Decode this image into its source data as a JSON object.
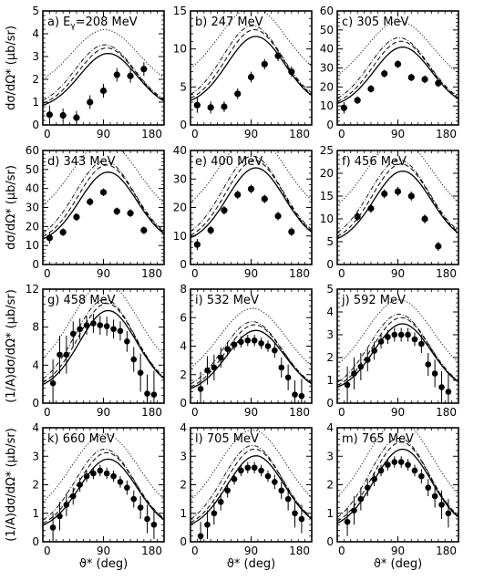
{
  "chart_data": [
    {
      "type": "scatter",
      "label": "a) E",
      "label_sub": "γ",
      "label_rest": "=208 MeV",
      "ylim": [
        0,
        5
      ],
      "yticks": [
        "0",
        "1",
        "2",
        "3",
        "4",
        "5"
      ],
      "xlim": [
        0,
        180
      ],
      "xticks": [
        "0",
        "90",
        "180"
      ],
      "series": [
        {
          "x": [
            10,
            30,
            50,
            70,
            90,
            110,
            130,
            150
          ],
          "y": [
            0.45,
            0.42,
            0.32,
            1.0,
            1.5,
            2.2,
            2.15,
            2.45
          ],
          "err": [
            0.4,
            0.3,
            0.3,
            0.3,
            0.3,
            0.3,
            0.3,
            0.3
          ]
        }
      ]
    },
    {
      "type": "scatter",
      "label": "b) 247 MeV",
      "ylim": [
        0,
        15
      ],
      "yticks": [
        "0",
        "5",
        "10",
        "15"
      ],
      "xlim": [
        0,
        180
      ],
      "xticks": [
        "0",
        "90",
        "180"
      ],
      "series": [
        {
          "x": [
            10,
            30,
            50,
            70,
            90,
            110,
            130,
            150
          ],
          "y": [
            2.6,
            2.3,
            2.4,
            4.1,
            6.3,
            8.0,
            9.1,
            7.0
          ],
          "err": [
            1.0,
            0.8,
            0.7,
            0.7,
            0.7,
            0.7,
            0.7,
            0.7
          ]
        }
      ]
    },
    {
      "type": "scatter",
      "label": "c) 305 MeV",
      "ylim": [
        0,
        60
      ],
      "yticks": [
        "0",
        "10",
        "20",
        "30",
        "40",
        "50",
        "60"
      ],
      "xlim": [
        0,
        180
      ],
      "xticks": [
        "0",
        "90",
        "180"
      ],
      "series": [
        {
          "x": [
            10,
            30,
            50,
            70,
            90,
            110,
            130,
            150
          ],
          "y": [
            9,
            13,
            19,
            27,
            32,
            25,
            24,
            22
          ],
          "err": [
            3,
            2,
            2,
            2,
            2,
            2,
            2,
            2
          ]
        }
      ]
    },
    {
      "type": "scatter",
      "label": "d) 343 MeV",
      "ylim": [
        0,
        60
      ],
      "yticks": [
        "0",
        "10",
        "20",
        "30",
        "40",
        "50",
        "60"
      ],
      "xlim": [
        0,
        180
      ],
      "xticks": [
        "0",
        "90",
        "180"
      ],
      "series": [
        {
          "x": [
            10,
            30,
            50,
            70,
            90,
            110,
            130,
            150
          ],
          "y": [
            14,
            17,
            25,
            33,
            38,
            28,
            27,
            18
          ],
          "err": [
            3,
            2,
            2,
            2,
            2,
            2,
            2,
            2
          ]
        }
      ]
    },
    {
      "type": "scatter",
      "label": "e) 400 MeV",
      "ylim": [
        0,
        40
      ],
      "yticks": [
        "0",
        "10",
        "20",
        "30",
        "40"
      ],
      "xlim": [
        0,
        180
      ],
      "xticks": [
        "0",
        "90",
        "180"
      ],
      "series": [
        {
          "x": [
            10,
            30,
            50,
            70,
            90,
            110,
            130,
            150
          ],
          "y": [
            7,
            12,
            19,
            24.5,
            26.5,
            23,
            17,
            11.5
          ],
          "err": [
            2,
            1.5,
            1.5,
            1.5,
            1.5,
            1.5,
            1.5,
            1.5
          ]
        }
      ]
    },
    {
      "type": "scatter",
      "label": "f) 456 MeV",
      "ylim": [
        0,
        25
      ],
      "yticks": [
        "0",
        "5",
        "10",
        "15",
        "20",
        "25"
      ],
      "xlim": [
        0,
        180
      ],
      "xticks": [
        "0",
        "90",
        "180"
      ],
      "series": [
        {
          "x": [
            30,
            50,
            70,
            90,
            110,
            130,
            150
          ],
          "y": [
            10.5,
            12.3,
            15.5,
            16,
            15,
            10,
            4
          ],
          "err": [
            1,
            1,
            1,
            1,
            1,
            1,
            1
          ]
        }
      ]
    },
    {
      "type": "scatter",
      "label": "g) 458 MeV",
      "ylim": [
        0,
        12
      ],
      "yticks": [
        "0",
        "4",
        "8",
        "12"
      ],
      "xlim": [
        0,
        180
      ],
      "xticks": [
        "0",
        "90",
        "180"
      ],
      "series": [
        {
          "x": [
            15,
            25,
            35,
            45,
            55,
            65,
            75,
            85,
            95,
            105,
            115,
            125,
            135,
            145,
            155,
            165
          ],
          "y": [
            2.1,
            5.1,
            5.1,
            7.3,
            7.8,
            8.2,
            8.4,
            8.2,
            8.1,
            7.8,
            7.6,
            6.5,
            4.6,
            3.2,
            1.0,
            0.9
          ],
          "err": [
            2.5,
            2.0,
            2.0,
            1.3,
            1.1,
            1.0,
            1.0,
            1.0,
            1.0,
            1.0,
            1.0,
            1.1,
            1.3,
            2.0,
            2.0,
            2.5
          ]
        }
      ]
    },
    {
      "type": "scatter",
      "label": "i) 532 MeV",
      "ylim": [
        0,
        8
      ],
      "yticks": [
        "0",
        "2",
        "4",
        "6",
        "8"
      ],
      "xlim": [
        0,
        180
      ],
      "xticks": [
        "0",
        "90",
        "180"
      ],
      "series": [
        {
          "x": [
            15,
            25,
            35,
            45,
            55,
            65,
            75,
            85,
            95,
            105,
            115,
            125,
            135,
            145,
            155,
            165
          ],
          "y": [
            1.0,
            2.3,
            2.5,
            3.2,
            3.8,
            4.1,
            4.3,
            4.4,
            4.4,
            4.2,
            4.0,
            3.7,
            2.5,
            1.8,
            0.6,
            0.5
          ],
          "err": [
            1.2,
            1.0,
            0.9,
            0.7,
            0.5,
            0.4,
            0.4,
            0.4,
            0.4,
            0.4,
            0.4,
            0.5,
            0.7,
            0.9,
            1.0,
            1.2
          ]
        }
      ]
    },
    {
      "type": "scatter",
      "label": "j) 592 MeV",
      "ylim": [
        0,
        5
      ],
      "yticks": [
        "0",
        "1",
        "2",
        "3",
        "4",
        "5"
      ],
      "xlim": [
        0,
        180
      ],
      "xticks": [
        "0",
        "90",
        "180"
      ],
      "series": [
        {
          "x": [
            15,
            25,
            35,
            45,
            55,
            65,
            75,
            85,
            95,
            105,
            115,
            125,
            135,
            145,
            155,
            165
          ],
          "y": [
            0.8,
            1.3,
            1.6,
            1.9,
            2.3,
            2.7,
            2.9,
            3.0,
            3.0,
            3.0,
            2.8,
            2.6,
            1.7,
            1.3,
            0.7,
            0.5
          ],
          "err": [
            0.8,
            0.7,
            0.6,
            0.5,
            0.4,
            0.3,
            0.3,
            0.3,
            0.3,
            0.3,
            0.3,
            0.4,
            0.5,
            0.6,
            0.7,
            0.8
          ]
        }
      ]
    },
    {
      "type": "scatter",
      "label": "k) 660 MeV",
      "ylim": [
        0,
        4
      ],
      "yticks": [
        "0",
        "1",
        "2",
        "3",
        "4"
      ],
      "xlim": [
        0,
        180
      ],
      "xticks": [
        "0",
        "90",
        "180"
      ],
      "series": [
        {
          "x": [
            15,
            25,
            35,
            45,
            55,
            65,
            75,
            85,
            95,
            105,
            115,
            125,
            135,
            145,
            155,
            165
          ],
          "y": [
            0.5,
            0.9,
            1.3,
            1.6,
            2.0,
            2.3,
            2.4,
            2.5,
            2.4,
            2.3,
            2.1,
            1.9,
            1.5,
            1.2,
            0.8,
            0.6
          ],
          "err": [
            0.5,
            0.5,
            0.4,
            0.3,
            0.25,
            0.2,
            0.2,
            0.2,
            0.2,
            0.2,
            0.2,
            0.25,
            0.3,
            0.4,
            0.5,
            0.5
          ]
        }
      ]
    },
    {
      "type": "scatter",
      "label": "l) 705 MeV",
      "ylim": [
        0,
        4
      ],
      "yticks": [
        "0",
        "1",
        "2",
        "3",
        "4"
      ],
      "xlim": [
        0,
        180
      ],
      "xticks": [
        "0",
        "90",
        "180"
      ],
      "series": [
        {
          "x": [
            15,
            25,
            35,
            45,
            55,
            65,
            75,
            85,
            95,
            105,
            115,
            125,
            135,
            145,
            155,
            165
          ],
          "y": [
            0.2,
            0.6,
            1.0,
            1.4,
            1.8,
            2.2,
            2.5,
            2.6,
            2.6,
            2.5,
            2.3,
            2.1,
            1.8,
            1.5,
            1.0,
            0.8
          ],
          "err": [
            0.5,
            0.5,
            0.4,
            0.3,
            0.25,
            0.2,
            0.2,
            0.2,
            0.2,
            0.2,
            0.2,
            0.25,
            0.3,
            0.4,
            0.5,
            0.5
          ]
        }
      ]
    },
    {
      "type": "scatter",
      "label": "m) 765 MeV",
      "ylim": [
        0,
        4
      ],
      "yticks": [
        "0",
        "1",
        "2",
        "3",
        "4"
      ],
      "xlim": [
        0,
        180
      ],
      "xticks": [
        "0",
        "90",
        "180"
      ],
      "series": [
        {
          "x": [
            15,
            25,
            35,
            45,
            55,
            65,
            75,
            85,
            95,
            105,
            115,
            125,
            135,
            145,
            155,
            165
          ],
          "y": [
            0.7,
            1.1,
            1.5,
            1.9,
            2.2,
            2.5,
            2.7,
            2.8,
            2.8,
            2.7,
            2.5,
            2.3,
            1.9,
            1.6,
            1.3,
            1.0
          ],
          "err": [
            0.5,
            0.5,
            0.4,
            0.3,
            0.25,
            0.2,
            0.2,
            0.2,
            0.2,
            0.2,
            0.2,
            0.25,
            0.3,
            0.4,
            0.5,
            0.5
          ]
        }
      ]
    }
  ],
  "row_ylabels": [
    "dσ/dΩ* (μb/sr)",
    "dσ/dΩ* (μb/sr)",
    "(1/A)dσ/dΩ* (μb/sr)",
    "(1/A)dσ/dΩ* (μb/sr)"
  ],
  "col_xlabel": "ϑ* (deg)"
}
